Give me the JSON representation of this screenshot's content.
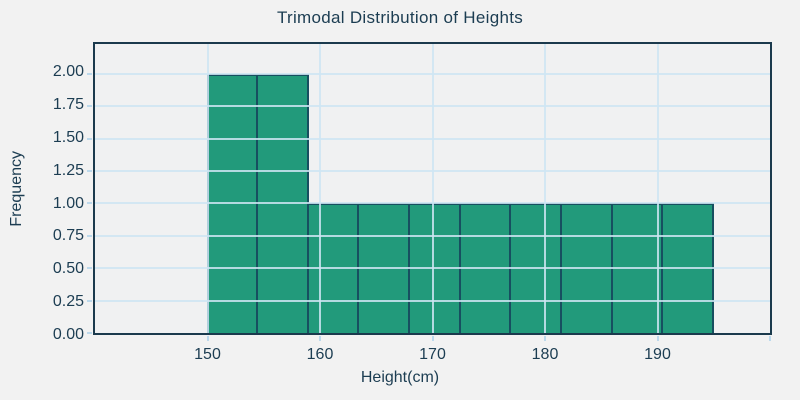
{
  "chart_data": {
    "type": "bar",
    "subtype": "histogram",
    "title": "Trimodal Distribution of Heights",
    "xlabel": "Height(cm)",
    "ylabel": "Frequency",
    "bin_edges": [
      150,
      154.5,
      159,
      163.5,
      168,
      172.5,
      177,
      181.5,
      186,
      190.5,
      195
    ],
    "frequencies": [
      2,
      2,
      1,
      1,
      1,
      1,
      1,
      1,
      1,
      1
    ],
    "xlim": [
      140,
      200
    ],
    "ylim": [
      0,
      2.23
    ],
    "x_ticks": [
      150,
      160,
      170,
      180,
      190,
      200
    ],
    "x_tick_labels": [
      "150",
      "160",
      "170",
      "180",
      "190",
      ""
    ],
    "y_ticks": [
      0,
      0.25,
      0.5,
      0.75,
      1,
      1.25,
      1.5,
      1.75,
      2
    ],
    "y_tick_labels": [
      "0.00",
      "0.25",
      "0.50",
      "0.75",
      "1.00",
      "1.25",
      "1.50",
      "1.75",
      "2.00"
    ],
    "grid": true,
    "grid_over_bars": true,
    "legend": null,
    "colors": {
      "bar_fill": "#229a7b",
      "bar_edge": "#174f60",
      "grid": "#cee5f3",
      "tick": "#bcd9ec",
      "spine": "#1b3a4d",
      "text": "#1c3d52",
      "figure_background": "#f2f2f2",
      "plot_background": "#f0f1f2"
    }
  }
}
